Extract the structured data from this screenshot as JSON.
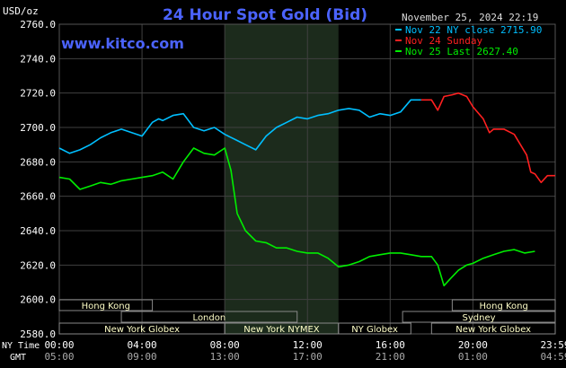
{
  "header": {
    "corner_label": "USD/oz",
    "title": "24 Hour Spot Gold (Bid)",
    "timestamp": "November 25, 2024 22:19",
    "watermark": "www.kitco.com"
  },
  "legend": [
    {
      "label": "Nov 22 NY close 2715.90",
      "color": "#00bfff"
    },
    {
      "label": "Nov 24 Sunday",
      "color": "#ff2020"
    },
    {
      "label": "Nov 25 Last 2627.40",
      "color": "#00ee00"
    }
  ],
  "colors": {
    "background": "#000000",
    "grid": "#404040",
    "axis_text": "#ffffff",
    "title": "#4b63ff",
    "timestamp": "#dddddd",
    "shade": "#1c2b1c",
    "session_bar": "#ffffc8",
    "session_border": "#888888"
  },
  "x_axis": {
    "row1_label": "NY Time",
    "row2_label": "GMT",
    "ny_ticks": [
      "00:00",
      "04:00",
      "08:00",
      "12:00",
      "16:00",
      "20:00",
      "23:59"
    ],
    "gmt_ticks": [
      "05:00",
      "09:00",
      "13:00",
      "17:00",
      "21:00",
      "01:00",
      "04:59"
    ]
  },
  "sessions": [
    {
      "label": "Hong Kong",
      "start": 0,
      "end": 4.5,
      "row": 0
    },
    {
      "label": "Hong Kong",
      "start": 19.0,
      "end": 23.98,
      "row": 0
    },
    {
      "label": "London",
      "start": 3.0,
      "end": 11.5,
      "row": 1
    },
    {
      "label": "Sydney",
      "start": 16.6,
      "end": 23.98,
      "row": 1
    },
    {
      "label": "New York Globex",
      "start": 0,
      "end": 8.0,
      "row": 2
    },
    {
      "label": "New York NYMEX",
      "start": 8.0,
      "end": 13.5,
      "row": 2
    },
    {
      "label": "NY Globex",
      "start": 13.5,
      "end": 17.0,
      "row": 2
    },
    {
      "label": "New York Globex",
      "start": 18.0,
      "end": 23.98,
      "row": 2
    }
  ],
  "chart_data": {
    "type": "line",
    "title": "24 Hour Spot Gold (Bid)",
    "ylabel": "USD/oz",
    "ylim": [
      2580,
      2760
    ],
    "yticks": [
      2580,
      2600,
      2620,
      2640,
      2660,
      2680,
      2700,
      2720,
      2740,
      2760
    ],
    "xlim": [
      0,
      23.98
    ],
    "x_unit": "hours (NY time)",
    "shaded_hours": [
      8.0,
      13.5
    ],
    "series": [
      {
        "name": "Nov 22 NY close 2715.90",
        "color": "#00bfff",
        "x": [
          0,
          0.5,
          1,
          1.5,
          2,
          2.5,
          3,
          3.5,
          4,
          4.5,
          4.8,
          5,
          5.5,
          6,
          6.5,
          7,
          7.5,
          8,
          8.5,
          9,
          9.5,
          10,
          10.5,
          11,
          11.5,
          12,
          12.5,
          13,
          13.5,
          14,
          14.5,
          15,
          15.5,
          16,
          16.5,
          17,
          17.5
        ],
        "values": [
          2688,
          2685,
          2687,
          2690,
          2694,
          2697,
          2699,
          2697,
          2695,
          2703,
          2705,
          2704,
          2707,
          2708,
          2700,
          2698,
          2700,
          2696,
          2693,
          2690,
          2687,
          2695,
          2700,
          2703,
          2706,
          2705,
          2707,
          2708,
          2710,
          2711,
          2710,
          2706,
          2708,
          2707,
          2709,
          2716,
          2716
        ]
      },
      {
        "name": "Nov 24 Sunday",
        "color": "#ff2020",
        "x": [
          17.5,
          18.0,
          18.3,
          18.6,
          19.0,
          19.3,
          19.7,
          20.0,
          20.5,
          20.8,
          21.0,
          21.5,
          22.0,
          22.3,
          22.6,
          22.8,
          23.0,
          23.3,
          23.6,
          23.98
        ],
        "values": [
          2716,
          2716,
          2710,
          2718,
          2719,
          2720,
          2718,
          2712,
          2705,
          2697,
          2699,
          2699,
          2696,
          2690,
          2684,
          2674,
          2673,
          2668,
          2672,
          2672
        ]
      },
      {
        "name": "Nov 25 Last 2627.40",
        "color": "#00ee00",
        "x": [
          0,
          0.5,
          1,
          1.5,
          2,
          2.5,
          3,
          3.5,
          4,
          4.5,
          5,
          5.5,
          6,
          6.5,
          7,
          7.5,
          8,
          8.3,
          8.6,
          9,
          9.5,
          10,
          10.5,
          11,
          11.5,
          12,
          12.5,
          13,
          13.5,
          14,
          14.5,
          15,
          15.5,
          16,
          16.5,
          17,
          17.5,
          18,
          18.3,
          18.6,
          18.9,
          19.3,
          19.7,
          20,
          20.5,
          21,
          21.5,
          22,
          22.5,
          23
        ],
        "values": [
          2671,
          2670,
          2664,
          2666,
          2668,
          2667,
          2669,
          2670,
          2671,
          2672,
          2674,
          2670,
          2680,
          2688,
          2685,
          2684,
          2688,
          2675,
          2650,
          2640,
          2634,
          2633,
          2630,
          2630,
          2628,
          2627,
          2627,
          2624,
          2619,
          2620,
          2622,
          2625,
          2626,
          2627,
          2627,
          2626,
          2625,
          2625,
          2620,
          2608,
          2612,
          2617,
          2620,
          2621,
          2624,
          2626,
          2628,
          2629,
          2627,
          2628
        ]
      }
    ]
  }
}
